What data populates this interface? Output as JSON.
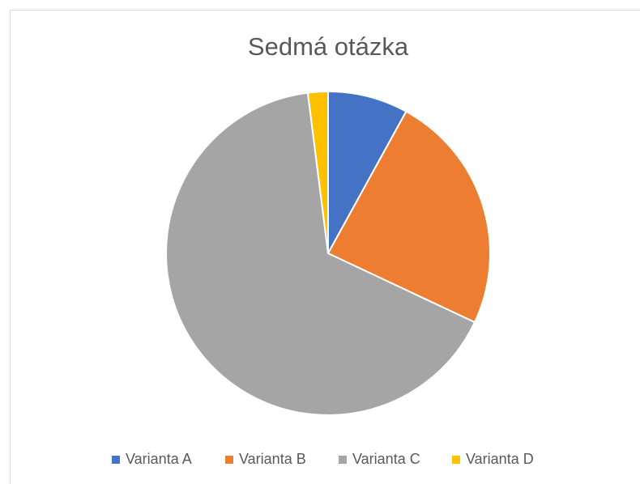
{
  "chart_data": {
    "type": "pie",
    "title": "Sedmá otázka",
    "categories": [
      "Varianta A",
      "Varianta B",
      "Varianta C",
      "Varianta D"
    ],
    "values": [
      8,
      24,
      66,
      2
    ],
    "colors": [
      "#4472c4",
      "#ed7d31",
      "#a5a5a5",
      "#ffc000"
    ],
    "legend": "bottom"
  }
}
